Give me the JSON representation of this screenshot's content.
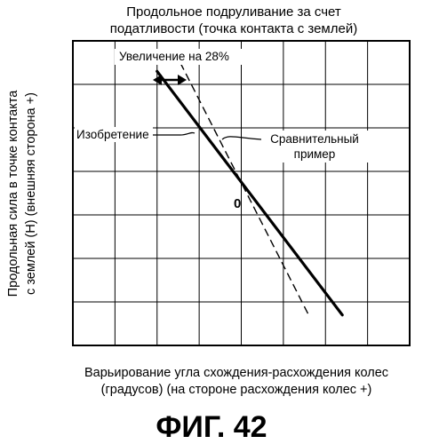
{
  "chart_data": {
    "type": "line",
    "title": [
      "Продольное подруливание за счет",
      "податливости (точка контакта с землей)"
    ],
    "xlabel": [
      "Варьирование угла схождения-расхождения колес",
      "(градусов) (на стороне расхождения колес +)"
    ],
    "ylabel": [
      "Продольная сила в точке контакта",
      "с землей (Н) (внешняя сторона +)"
    ],
    "origin_label": "0",
    "grid": true,
    "xlim": [
      -4,
      4
    ],
    "ylim": [
      -3.5,
      3.5
    ],
    "series": [
      {
        "name": "Изобретение",
        "style": "solid",
        "x": [
          -2,
          2.4
        ],
        "y": [
          2.8,
          -2.8
        ]
      },
      {
        "name": "Сравнительный пример",
        "style": "dashed",
        "x": [
          -1.45,
          1.6
        ],
        "y": [
          3.0,
          -2.8
        ]
      }
    ],
    "annotations": {
      "increase": "Увеличение на 28%",
      "invention": "Изобретение",
      "comparative": [
        "Сравнительный",
        "пример"
      ]
    }
  },
  "figure_label": "ФИГ. 42"
}
